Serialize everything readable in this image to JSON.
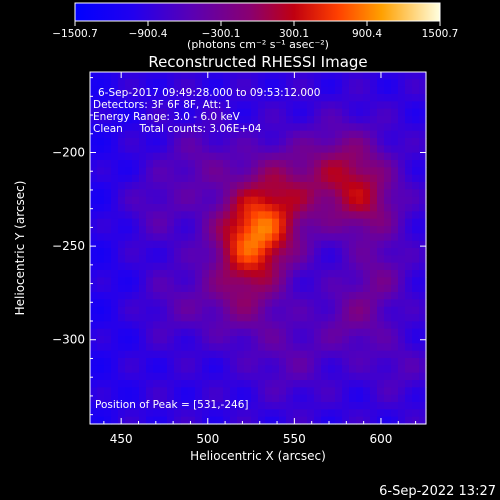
{
  "chart_data": {
    "type": "heatmap",
    "title": "Reconstructed RHESSI Image",
    "xlabel": "Heliocentric X (arcsec)",
    "ylabel": "Heliocentric Y (arcsec)",
    "xlim": [
      432,
      626
    ],
    "ylim": [
      -345,
      -157
    ],
    "x_ticks": [
      450,
      500,
      550,
      600
    ],
    "y_ticks": [
      -200,
      -250,
      -300
    ],
    "colorbar": {
      "range": [
        -1500.7,
        1500.7
      ],
      "tick_labels": [
        "-1500.7",
        "-900.4",
        "-300.1",
        "300.1",
        "900.4",
        "1500.7"
      ],
      "unit_label": "(photons cm⁻² s⁻¹ asec⁻²)"
    },
    "annotations": [
      "6-Sep-2017 09:49:28.000 to 09:53:12.000",
      "Detectors: 3F 6F 8F, Att: 1",
      "Energy Range: 3.0 - 6.0 keV",
      "Clean     Total counts: 3.06E+04"
    ],
    "peak_text": "Position of Peak = [531,-246]",
    "peak": {
      "x": 531,
      "y": -246,
      "value": 1500.7
    },
    "sources": [
      {
        "x": 526,
        "y": -246,
        "sigma": 16,
        "amplitude": 1450
      },
      {
        "x": 540,
        "y": -222,
        "sigma": 18,
        "amplitude": 820
      },
      {
        "x": 580,
        "y": -210,
        "sigma": 17,
        "amplitude": 880
      },
      {
        "x": 593,
        "y": -230,
        "sigma": 14,
        "amplitude": 620
      },
      {
        "x": 520,
        "y": -278,
        "sigma": 16,
        "amplitude": 620
      },
      {
        "x": 585,
        "y": -288,
        "sigma": 14,
        "amplitude": 520
      },
      {
        "x": 600,
        "y": -265,
        "sigma": 12,
        "amplitude": 420
      },
      {
        "x": 495,
        "y": -205,
        "sigma": 14,
        "amplitude": 380
      },
      {
        "x": 470,
        "y": -230,
        "sigma": 14,
        "amplitude": 300
      },
      {
        "x": 482,
        "y": -280,
        "sigma": 14,
        "amplitude": 300
      },
      {
        "x": 548,
        "y": -310,
        "sigma": 16,
        "amplitude": 330
      },
      {
        "x": 610,
        "y": -315,
        "sigma": 12,
        "amplitude": 260
      }
    ],
    "background_level": -900,
    "grid": false
  },
  "footer": {
    "timestamp": "6-Sep-2022 13:27"
  }
}
